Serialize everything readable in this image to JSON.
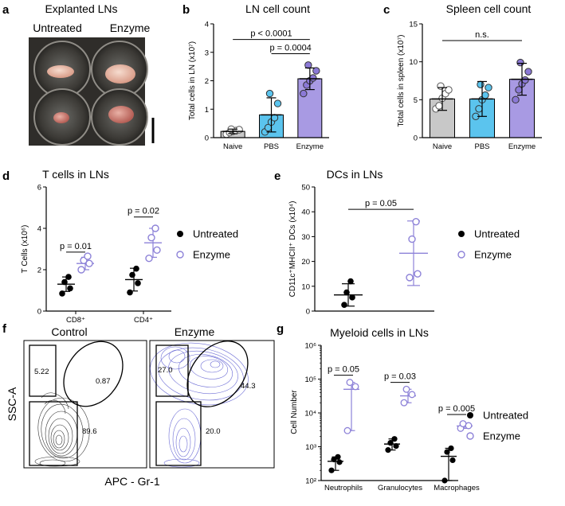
{
  "panels": {
    "a": {
      "label": "a",
      "title": "Explanted LNs",
      "col_untreated": "Untreated",
      "col_enzyme": "Enzyme"
    },
    "b": {
      "label": "b"
    },
    "c": {
      "label": "c"
    },
    "d": {
      "label": "d"
    },
    "e": {
      "label": "e"
    },
    "f": {
      "label": "f",
      "title_left": "Control",
      "title_right": "Enzyme",
      "ylabel": "SSC-A",
      "xlabel": "APC - Gr-1",
      "control_gates": [
        "5.22",
        "0.87",
        "89.6"
      ],
      "enzyme_gates": [
        "27.0",
        "44.3",
        "20.0"
      ]
    },
    "g": {
      "label": "g"
    }
  },
  "colors": {
    "naive": "#c8c8c8",
    "pbs": "#5bc4ee",
    "enzyme_bar": "#a89ae3",
    "enzyme_dot": "#8b79d6",
    "enzyme_open": "#8d82d8",
    "untreated": "#000000"
  },
  "chart_data": [
    {
      "id": "b",
      "type": "bar",
      "title": "LN cell count",
      "ylabel": "Total cells in LN (x10⁷)",
      "categories": [
        "Naive",
        "PBS",
        "Enzyme"
      ],
      "values": [
        0.22,
        0.8,
        2.07
      ],
      "errors": [
        0.08,
        0.6,
        0.38
      ],
      "points": [
        [
          0.12,
          0.18,
          0.22,
          0.25,
          0.28,
          0.3
        ],
        [
          0.2,
          0.35,
          0.55,
          0.7,
          1.2,
          1.55
        ],
        [
          1.55,
          1.85,
          2.0,
          2.1,
          2.35,
          2.55
        ]
      ],
      "ylim": [
        0,
        4
      ],
      "yticks": [
        "0",
        "1",
        "2",
        "3",
        "4"
      ],
      "annotations": [
        "p < 0.0001",
        "p = 0.0004"
      ]
    },
    {
      "id": "c",
      "type": "bar",
      "title": "Spleen cell count",
      "ylabel": "Total cells in spleen (x10⁷)",
      "categories": [
        "Naive",
        "PBS",
        "Enzyme"
      ],
      "values": [
        5.1,
        5.1,
        7.7
      ],
      "errors": [
        1.5,
        2.3,
        2.1
      ],
      "points": [
        [
          3.8,
          4.2,
          5.2,
          5.8,
          6.3,
          6.8
        ],
        [
          2.8,
          3.8,
          5.0,
          5.6,
          6.6,
          7.0
        ],
        [
          5.0,
          6.3,
          7.1,
          7.6,
          8.7,
          9.9
        ]
      ],
      "ylim": [
        0,
        15
      ],
      "yticks": [
        "0",
        "5",
        "10",
        "15"
      ],
      "annotations": [
        "n.s."
      ]
    },
    {
      "id": "d",
      "type": "scatter",
      "title": "T cells in LNs",
      "ylabel": "T Cells (x10⁶)",
      "categories": [
        "CD8⁺",
        "CD4⁺"
      ],
      "series": [
        {
          "name": "Untreated",
          "values": [
            [
              0.85,
              1.1,
              1.4,
              1.65
            ],
            [
              0.9,
              1.35,
              1.75,
              2.05
            ]
          ],
          "mean": [
            1.3,
            1.52
          ],
          "sd": [
            0.35,
            0.55
          ]
        },
        {
          "name": "Enzyme",
          "values": [
            [
              2.0,
              2.3,
              2.45,
              2.65
            ],
            [
              2.55,
              2.95,
              3.55,
              4.0
            ]
          ],
          "mean": [
            2.3,
            3.3
          ],
          "sd": [
            0.3,
            0.7
          ]
        }
      ],
      "ylim": [
        0,
        6
      ],
      "yticks": [
        "0",
        "2",
        "4",
        "6"
      ],
      "annotations": [
        "p = 0.01",
        "p = 0.02"
      ],
      "legend": "right"
    },
    {
      "id": "e",
      "type": "scatter",
      "title": "DCs in LNs",
      "ylabel": "CD11c⁺MHCII⁺ DCs (x10⁴)",
      "series": [
        {
          "name": "Untreated",
          "values": [
            2.5,
            5.5,
            7.5,
            12.0
          ],
          "mean": 6.5,
          "sd": 4.5
        },
        {
          "name": "Enzyme",
          "values": [
            13.5,
            15.0,
            29.0,
            36.0
          ],
          "mean": 23.3,
          "sd": 13.0
        }
      ],
      "ylim": [
        0,
        50
      ],
      "yticks": [
        "0",
        "10",
        "20",
        "30",
        "40",
        "50"
      ],
      "annotations": [
        "p = 0.05"
      ],
      "legend": "right"
    },
    {
      "id": "g",
      "type": "scatter",
      "title": "Myeloid cells in LNs",
      "ylabel": "Cell Number",
      "yscale": "log",
      "categories": [
        "Neutrophils",
        "Granulocytes",
        "Macrophages"
      ],
      "series": [
        {
          "name": "Untreated",
          "values": [
            [
              200,
              350,
              420,
              500
            ],
            [
              800,
              1050,
              1300,
              1700
            ],
            [
              100,
              400,
              700,
              900
            ]
          ],
          "mean": [
            370,
            1200,
            520
          ]
        },
        {
          "name": "Enzyme",
          "values": [
            [
              3000,
              60000,
              80000
            ],
            [
              20000,
              35000,
              50000
            ],
            [
              3500,
              4200,
              4800
            ]
          ],
          "mean": [
            50000,
            32000,
            4100
          ]
        }
      ],
      "ylim": [
        100,
        1000000
      ],
      "yticks": [
        "10²",
        "10³",
        "10⁴",
        "10⁵",
        "10⁶"
      ],
      "annotations": [
        "p = 0.05",
        "p = 0.03",
        "p = 0.005"
      ],
      "legend": "right"
    }
  ]
}
